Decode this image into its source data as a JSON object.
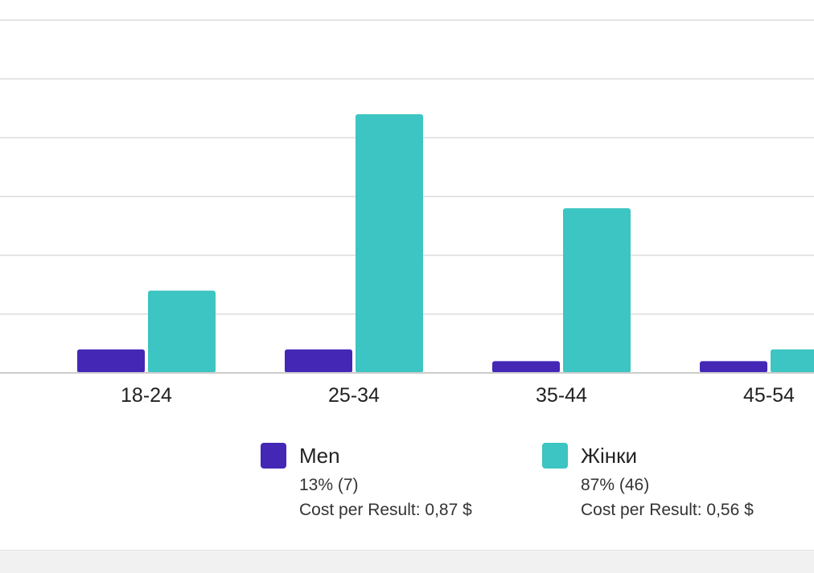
{
  "chart_data": {
    "type": "bar",
    "categories": [
      "18-24",
      "25-34",
      "35-44",
      "45-54"
    ],
    "series": [
      {
        "name": "Men",
        "color": "#4527b6",
        "values": [
          2,
          2,
          1,
          1
        ]
      },
      {
        "name": "Жінки",
        "color": "#3cc5c2",
        "values": [
          7,
          22,
          14,
          2
        ]
      }
    ],
    "ylim": [
      0,
      30
    ],
    "grid": true,
    "legend": "bottom"
  },
  "legend": {
    "men": {
      "label": "Men",
      "share": "13% (7)",
      "cost": "Cost per Result: 0,87 $",
      "color": "#4527b6"
    },
    "women": {
      "label": "Жінки",
      "share": "87% (46)",
      "cost": "Cost per Result: 0,56 $",
      "color": "#3cc5c2"
    }
  }
}
